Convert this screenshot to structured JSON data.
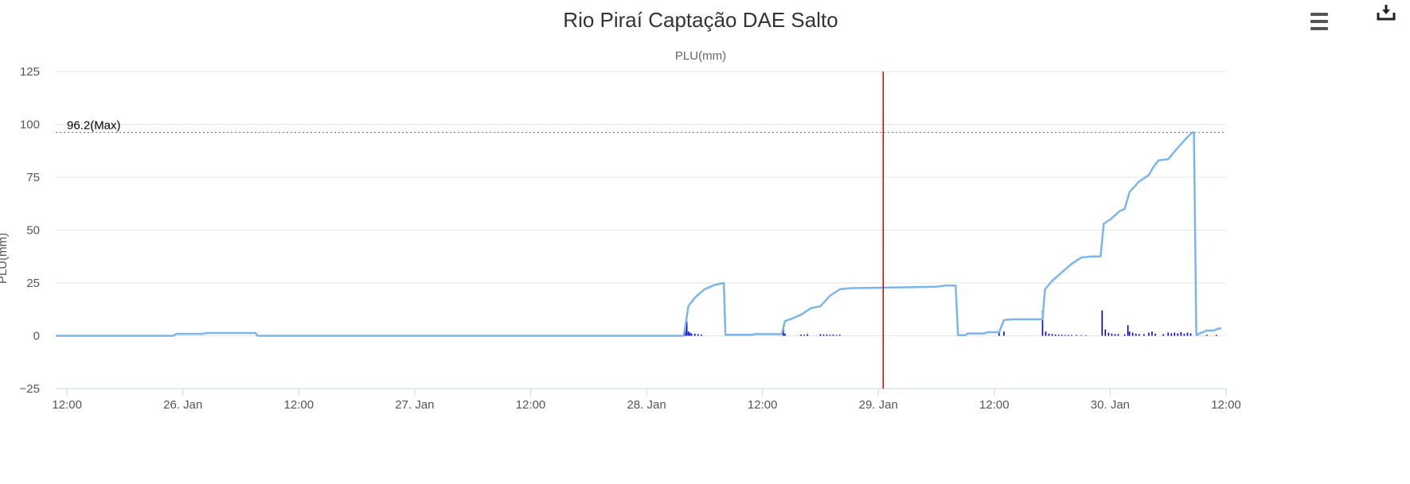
{
  "chart_data": {
    "type": "line",
    "title": "Rio Piraí Captação DAE Salto",
    "subtitle": "PLU(mm)",
    "ylabel": "PLU(mm)",
    "xlabel": "",
    "ylim": [
      -25,
      125
    ],
    "xlim": [
      "2024-01-25 10:50",
      "2024-01-30 12:00"
    ],
    "y_ticks": [
      "125",
      "100",
      "75",
      "50",
      "25",
      "0",
      "−25"
    ],
    "x_ticks": [
      "12:00",
      "26. Jan",
      "12:00",
      "27. Jan",
      "12:00",
      "28. Jan",
      "12:00",
      "29. Jan",
      "12:00",
      "30. Jan",
      "12:00"
    ],
    "grid": true,
    "legend": "none",
    "colors": {
      "accumulated": "#7cb5ec",
      "hourly": "#0000cc",
      "marker": "#cc0000",
      "max_line": "#666666"
    },
    "max_line": {
      "value": 96.2,
      "label": "96.2(Max)"
    },
    "vertical_marker": {
      "x": "2024-01-29 00:30"
    },
    "series": [
      {
        "type": "line",
        "points": [
          [
            "2024-01-25 10:50",
            0
          ],
          [
            "2024-01-25 23:00",
            0
          ],
          [
            "2024-01-25 23:20",
            0.9
          ],
          [
            "2024-01-26 02:00",
            0.9
          ],
          [
            "2024-01-26 02:30",
            1.3
          ],
          [
            "2024-01-26 07:30",
            1.3
          ],
          [
            "2024-01-26 07:45",
            0
          ],
          [
            "2024-01-28 03:50",
            0
          ],
          [
            "2024-01-28 04:00",
            4
          ],
          [
            "2024-01-28 04:20",
            14
          ],
          [
            "2024-01-28 05:00",
            18
          ],
          [
            "2024-01-28 06:00",
            22
          ],
          [
            "2024-01-28 07:00",
            24
          ],
          [
            "2024-01-28 08:00",
            25
          ],
          [
            "2024-01-28 08:10",
            0.5
          ],
          [
            "2024-01-28 11:00",
            0.5
          ],
          [
            "2024-01-28 11:10",
            0.8
          ],
          [
            "2024-01-28 13:00",
            0.8
          ],
          [
            "2024-01-28 14:00",
            0.8
          ],
          [
            "2024-01-28 14:20",
            7
          ],
          [
            "2024-01-28 15:00",
            8
          ],
          [
            "2024-01-28 16:00",
            10
          ],
          [
            "2024-01-28 17:00",
            13
          ],
          [
            "2024-01-28 18:00",
            14
          ],
          [
            "2024-01-28 19:00",
            19
          ],
          [
            "2024-01-28 20:00",
            22
          ],
          [
            "2024-01-28 21:00",
            22.5
          ],
          [
            "2024-01-29 06:00",
            23.2
          ],
          [
            "2024-01-29 07:00",
            23.8
          ],
          [
            "2024-01-29 08:00",
            23.8
          ],
          [
            "2024-01-29 08:15",
            0.3
          ],
          [
            "2024-01-29 09:00",
            0.3
          ],
          [
            "2024-01-29 09:15",
            1.1
          ],
          [
            "2024-01-29 11:00",
            1.1
          ],
          [
            "2024-01-29 11:15",
            1.7
          ],
          [
            "2024-01-29 12:30",
            1.7
          ],
          [
            "2024-01-29 13:00",
            7.5
          ],
          [
            "2024-01-29 14:00",
            7.8
          ],
          [
            "2024-01-29 17:00",
            7.8
          ],
          [
            "2024-01-29 17:15",
            22
          ],
          [
            "2024-01-29 18:00",
            26
          ],
          [
            "2024-01-29 19:00",
            30
          ],
          [
            "2024-01-29 20:00",
            34
          ],
          [
            "2024-01-29 21:00",
            37
          ],
          [
            "2024-01-29 22:00",
            37.5
          ],
          [
            "2024-01-29 23:00",
            37.5
          ],
          [
            "2024-01-29 23:20",
            53
          ],
          [
            "2024-01-30 00:00",
            55
          ],
          [
            "2024-01-30 01:00",
            59
          ],
          [
            "2024-01-30 01:30",
            60
          ],
          [
            "2024-01-30 02:00",
            68
          ],
          [
            "2024-01-30 03:00",
            73
          ],
          [
            "2024-01-30 04:00",
            76
          ],
          [
            "2024-01-30 04:30",
            80
          ],
          [
            "2024-01-30 05:00",
            83
          ],
          [
            "2024-01-30 06:00",
            83.5
          ],
          [
            "2024-01-30 07:00",
            89
          ],
          [
            "2024-01-30 08:00",
            94
          ],
          [
            "2024-01-30 08:30",
            96.2
          ],
          [
            "2024-01-30 08:40",
            96.2
          ],
          [
            "2024-01-30 08:55",
            0.5
          ],
          [
            "2024-01-30 09:30",
            1.5
          ],
          [
            "2024-01-30 10:00",
            2.5
          ],
          [
            "2024-01-30 10:45",
            2.5
          ],
          [
            "2024-01-30 11:15",
            3.5
          ],
          [
            "2024-01-30 11:30",
            3.4
          ]
        ]
      },
      {
        "type": "column",
        "points": [
          [
            "2024-01-28 04:00",
            3
          ],
          [
            "2024-01-28 04:10",
            7
          ],
          [
            "2024-01-28 04:20",
            2
          ],
          [
            "2024-01-28 04:30",
            1.5
          ],
          [
            "2024-01-28 04:40",
            1
          ],
          [
            "2024-01-28 05:00",
            1
          ],
          [
            "2024-01-28 05:20",
            0.8
          ],
          [
            "2024-01-28 05:40",
            0.6
          ],
          [
            "2024-01-28 14:10",
            4.5
          ],
          [
            "2024-01-28 14:20",
            1
          ],
          [
            "2024-01-28 16:00",
            0.6
          ],
          [
            "2024-01-28 16:20",
            0.5
          ],
          [
            "2024-01-28 16:40",
            0.8
          ],
          [
            "2024-01-28 18:00",
            0.8
          ],
          [
            "2024-01-28 18:20",
            0.6
          ],
          [
            "2024-01-28 18:40",
            0.7
          ],
          [
            "2024-01-28 19:00",
            0.5
          ],
          [
            "2024-01-28 19:20",
            0.6
          ],
          [
            "2024-01-28 19:40",
            0.4
          ],
          [
            "2024-01-28 20:00",
            0.5
          ],
          [
            "2024-01-29 12:30",
            1.5
          ],
          [
            "2024-01-29 13:00",
            2
          ],
          [
            "2024-01-29 17:00",
            12
          ],
          [
            "2024-01-29 17:20",
            2
          ],
          [
            "2024-01-29 17:40",
            1
          ],
          [
            "2024-01-29 18:00",
            0.8
          ],
          [
            "2024-01-29 18:20",
            0.6
          ],
          [
            "2024-01-29 18:40",
            0.5
          ],
          [
            "2024-01-29 19:00",
            0.5
          ],
          [
            "2024-01-29 19:20",
            0.4
          ],
          [
            "2024-01-29 19:40",
            0.4
          ],
          [
            "2024-01-29 20:00",
            0.4
          ],
          [
            "2024-01-29 20:30",
            0.4
          ],
          [
            "2024-01-29 21:00",
            0.3
          ],
          [
            "2024-01-29 21:30",
            0.3
          ],
          [
            "2024-01-29 23:10",
            12
          ],
          [
            "2024-01-29 23:30",
            3
          ],
          [
            "2024-01-29 23:50",
            1.5
          ],
          [
            "2024-01-30 00:10",
            1
          ],
          [
            "2024-01-30 00:30",
            0.8
          ],
          [
            "2024-01-30 00:50",
            0.8
          ],
          [
            "2024-01-30 01:30",
            0.7
          ],
          [
            "2024-01-30 01:50",
            5
          ],
          [
            "2024-01-30 02:00",
            2
          ],
          [
            "2024-01-30 02:20",
            1.5
          ],
          [
            "2024-01-30 02:40",
            1
          ],
          [
            "2024-01-30 03:00",
            0.8
          ],
          [
            "2024-01-30 03:30",
            0.8
          ],
          [
            "2024-01-30 04:00",
            1.5
          ],
          [
            "2024-01-30 04:20",
            2
          ],
          [
            "2024-01-30 04:40",
            1
          ],
          [
            "2024-01-30 05:30",
            0.8
          ],
          [
            "2024-01-30 06:00",
            1.5
          ],
          [
            "2024-01-30 06:20",
            1.2
          ],
          [
            "2024-01-30 06:40",
            1.5
          ],
          [
            "2024-01-30 07:00",
            1.2
          ],
          [
            "2024-01-30 07:20",
            1.8
          ],
          [
            "2024-01-30 07:40",
            1
          ],
          [
            "2024-01-30 08:00",
            1.5
          ],
          [
            "2024-01-30 08:20",
            1.2
          ],
          [
            "2024-01-30 09:00",
            0.5
          ],
          [
            "2024-01-30 10:00",
            0.5
          ],
          [
            "2024-01-30 11:00",
            0.5
          ]
        ]
      }
    ]
  }
}
